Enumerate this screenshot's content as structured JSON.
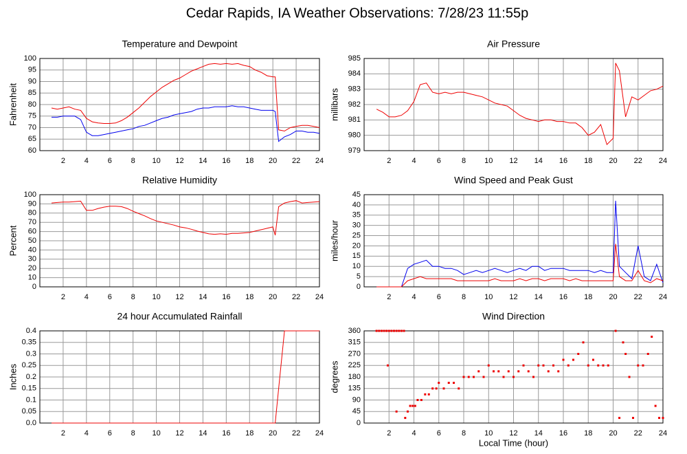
{
  "title": "Cedar Rapids, IA Weather Observations: 7/28/23 11:55p",
  "chart_data": [
    {
      "type": "line",
      "title": "Temperature and Dewpoint",
      "ylabel": "Fahrenheit",
      "x": [
        1,
        1.5,
        2,
        2.5,
        3,
        3.5,
        4,
        4.5,
        5,
        5.5,
        6,
        6.5,
        7,
        7.5,
        8,
        8.5,
        9,
        9.5,
        10,
        10.5,
        11,
        11.5,
        12,
        12.5,
        13,
        13.5,
        14,
        14.5,
        15,
        15.5,
        16,
        16.5,
        17,
        17.5,
        18,
        18.5,
        19,
        19.5,
        20,
        20.2,
        20.5,
        21,
        21.5,
        22,
        22.5,
        23,
        23.5,
        24
      ],
      "series": [
        {
          "color": "#ee0000",
          "values": [
            78.5,
            78,
            78.5,
            79,
            78,
            77.5,
            74,
            72.5,
            72,
            71.8,
            71.8,
            72,
            73,
            74.5,
            76.5,
            78.5,
            81,
            83.5,
            85.5,
            87.5,
            89,
            90.5,
            91.5,
            93,
            94.5,
            95.5,
            96.5,
            97.5,
            97.8,
            97.5,
            97.8,
            97.5,
            97.8,
            97,
            96.5,
            95,
            94,
            92.5,
            92,
            92,
            69,
            68.5,
            70,
            70.5,
            71,
            71,
            70.5,
            70
          ]
        },
        {
          "color": "#0000ee",
          "values": [
            74.5,
            74.5,
            75,
            75,
            75,
            73.5,
            68,
            66.5,
            66.5,
            67,
            67.5,
            68,
            68.5,
            69,
            69.5,
            70.5,
            71,
            72,
            73,
            74,
            74.5,
            75.5,
            76,
            76.5,
            77,
            78,
            78.5,
            78.5,
            79,
            79,
            79,
            79.5,
            79,
            79,
            78.5,
            78,
            77.5,
            77.5,
            77.5,
            77,
            64,
            66,
            67,
            68.5,
            68.5,
            68,
            68,
            67.5
          ]
        }
      ],
      "xlim": [
        0,
        24
      ],
      "xticks": [
        2,
        4,
        6,
        8,
        10,
        12,
        14,
        16,
        18,
        20,
        22,
        24
      ],
      "ylim": [
        60,
        100
      ],
      "yticks": [
        60,
        65,
        70,
        75,
        80,
        85,
        90,
        95,
        100
      ],
      "grid": true
    },
    {
      "type": "line",
      "title": "Air Pressure",
      "ylabel": "millibars",
      "x": [
        1,
        1.5,
        2,
        2.5,
        3,
        3.5,
        4,
        4.5,
        5,
        5.5,
        6,
        6.5,
        7,
        7.5,
        8,
        8.5,
        9,
        9.5,
        10,
        10.5,
        11,
        11.5,
        12,
        12.5,
        13,
        13.5,
        14,
        14.5,
        15,
        15.5,
        16,
        16.5,
        17,
        17.5,
        18,
        18.5,
        19,
        19.5,
        20,
        20.2,
        20.5,
        21,
        21.5,
        22,
        22.5,
        23,
        23.5,
        24
      ],
      "series": [
        {
          "color": "#ee0000",
          "values": [
            981.7,
            981.5,
            981.2,
            981.2,
            981.3,
            981.6,
            982.2,
            983.3,
            983.4,
            982.8,
            982.7,
            982.8,
            982.7,
            982.8,
            982.8,
            982.7,
            982.6,
            982.5,
            982.3,
            982.1,
            982.0,
            981.9,
            981.6,
            981.3,
            981.1,
            981.0,
            980.9,
            981.0,
            981.0,
            980.9,
            980.9,
            980.8,
            980.8,
            980.5,
            980.0,
            980.2,
            980.7,
            979.4,
            979.8,
            984.7,
            984.2,
            981.2,
            982.5,
            982.3,
            982.6,
            982.9,
            983.0,
            983.2
          ]
        }
      ],
      "xlim": [
        0,
        24
      ],
      "xticks": [
        2,
        4,
        6,
        8,
        10,
        12,
        14,
        16,
        18,
        20,
        22,
        24
      ],
      "ylim": [
        979,
        985
      ],
      "yticks": [
        979,
        980,
        981,
        982,
        983,
        984,
        985
      ],
      "grid": true
    },
    {
      "type": "line",
      "title": "Relative Humidity",
      "ylabel": "Percent",
      "x": [
        1,
        1.5,
        2,
        2.5,
        3,
        3.5,
        4,
        4.5,
        5,
        5.5,
        6,
        6.5,
        7,
        7.5,
        8,
        8.5,
        9,
        9.5,
        10,
        10.5,
        11,
        11.5,
        12,
        12.5,
        13,
        13.5,
        14,
        14.5,
        15,
        15.5,
        16,
        16.5,
        17,
        17.5,
        18,
        18.5,
        19,
        19.5,
        20,
        20.2,
        20.5,
        21,
        21.5,
        22,
        22.5,
        23,
        23.5,
        24
      ],
      "series": [
        {
          "color": "#ee0000",
          "values": [
            91,
            91.5,
            92,
            92,
            92.5,
            93,
            83,
            83,
            85,
            86.5,
            87.5,
            87.5,
            87,
            85,
            82,
            79.5,
            77,
            74,
            71.5,
            70,
            68.5,
            67,
            65,
            64,
            62.5,
            60.5,
            59,
            57.5,
            57,
            57.5,
            57,
            58,
            58,
            58.5,
            59,
            60.5,
            62,
            63.5,
            65,
            56,
            87,
            91,
            92.5,
            93.5,
            91,
            91.5,
            92,
            92.5
          ]
        }
      ],
      "xlim": [
        0,
        24
      ],
      "xticks": [
        2,
        4,
        6,
        8,
        10,
        12,
        14,
        16,
        18,
        20,
        22,
        24
      ],
      "ylim": [
        0,
        100
      ],
      "yticks": [
        0,
        10,
        20,
        30,
        40,
        50,
        60,
        70,
        80,
        90,
        100
      ],
      "grid": true
    },
    {
      "type": "line",
      "title": "Wind Speed and Peak Gust",
      "ylabel": "miles/hour",
      "x": [
        1,
        1.5,
        2,
        2.5,
        3,
        3.5,
        4,
        4.5,
        5,
        5.5,
        6,
        6.5,
        7,
        7.5,
        8,
        8.5,
        9,
        9.5,
        10,
        10.5,
        11,
        11.5,
        12,
        12.5,
        13,
        13.5,
        14,
        14.5,
        15,
        15.5,
        16,
        16.5,
        17,
        17.5,
        18,
        18.5,
        19,
        19.5,
        20,
        20.2,
        20.5,
        21,
        21.5,
        22,
        22.5,
        23,
        23.5,
        24
      ],
      "series": [
        {
          "color": "#0000ee",
          "values": [
            0,
            0,
            0,
            0,
            0,
            9,
            11,
            12,
            13,
            10,
            10,
            9,
            9,
            8,
            6,
            7,
            8,
            7,
            8,
            9,
            8,
            7,
            8,
            9,
            8,
            10,
            10,
            8,
            9,
            9,
            9,
            8,
            8,
            8,
            8,
            7,
            8,
            7,
            7,
            42,
            10,
            7,
            4,
            20,
            5,
            3,
            11,
            2
          ]
        },
        {
          "color": "#ee0000",
          "values": [
            0,
            0,
            0,
            0,
            0,
            3,
            4,
            5,
            4,
            4,
            4,
            4,
            4,
            3,
            3,
            3,
            3,
            3,
            3,
            4,
            3,
            3,
            3,
            4,
            3,
            4,
            4,
            3,
            4,
            4,
            4,
            3,
            4,
            3,
            3,
            3,
            3,
            3,
            3,
            21,
            5,
            3,
            3,
            8,
            3,
            2,
            4,
            3
          ]
        }
      ],
      "xlim": [
        0,
        24
      ],
      "xticks": [
        2,
        4,
        6,
        8,
        10,
        12,
        14,
        16,
        18,
        20,
        22,
        24
      ],
      "ylim": [
        0,
        45
      ],
      "yticks": [
        0,
        5,
        10,
        15,
        20,
        25,
        30,
        35,
        40,
        45
      ],
      "grid": true
    },
    {
      "type": "line",
      "title": "24 hour Accumulated Rainfall",
      "ylabel": "Inches",
      "x": [
        1,
        1.5,
        2,
        2.5,
        3,
        3.5,
        4,
        4.5,
        5,
        5.5,
        6,
        6.5,
        7,
        7.5,
        8,
        8.5,
        9,
        9.5,
        10,
        10.5,
        11,
        11.5,
        12,
        12.5,
        13,
        13.5,
        14,
        14.5,
        15,
        15.5,
        16,
        16.5,
        17,
        17.5,
        18,
        18.5,
        19,
        19.5,
        20,
        20.2,
        20.5,
        21,
        21.5,
        22,
        22.5,
        23,
        23.5,
        24
      ],
      "series": [
        {
          "color": "#ee0000",
          "values": [
            0,
            0,
            0,
            0,
            0,
            0,
            0,
            0,
            0,
            0,
            0,
            0,
            0,
            0,
            0,
            0,
            0,
            0,
            0,
            0,
            0,
            0,
            0,
            0,
            0,
            0,
            0,
            0,
            0,
            0,
            0,
            0,
            0,
            0,
            0,
            0,
            0,
            0,
            0,
            0,
            0.15,
            0.4,
            0.4,
            0.4,
            0.4,
            0.4,
            0.4,
            0.4
          ]
        }
      ],
      "xlim": [
        0,
        24
      ],
      "xticks": [
        2,
        4,
        6,
        8,
        10,
        12,
        14,
        16,
        18,
        20,
        22,
        24
      ],
      "ylim": [
        0,
        0.4
      ],
      "yticks": [
        {
          "value": 0,
          "label": "0.0"
        },
        0.05,
        0.1,
        0.15,
        0.2,
        0.25,
        0.3,
        0.35,
        0.4
      ],
      "grid": true
    },
    {
      "type": "scatter",
      "title": "Wind Direction",
      "ylabel": "degrees",
      "xlabel": "Local Time (hour)",
      "x": [
        1.0,
        1.2,
        1.4,
        1.6,
        1.8,
        2.0,
        2.2,
        2.4,
        2.6,
        2.8,
        3.0,
        3.2,
        1.9,
        2.6,
        3.3,
        3.5,
        3.7,
        3.9,
        4.1,
        4.3,
        4.6,
        4.9,
        5.2,
        5.5,
        5.8,
        6.0,
        6.4,
        6.8,
        7.2,
        7.6,
        8.0,
        8.4,
        8.8,
        9.2,
        9.6,
        10.0,
        10.4,
        10.8,
        11.2,
        11.6,
        12.0,
        12.4,
        12.8,
        13.2,
        13.6,
        14.0,
        14.4,
        14.8,
        15.2,
        15.6,
        16.0,
        16.4,
        16.8,
        17.2,
        17.6,
        18.0,
        18.4,
        18.8,
        19.2,
        19.6,
        20.2,
        20.5,
        20.8,
        21.0,
        21.3,
        21.6,
        22.0,
        22.4,
        22.8,
        23.1,
        23.4,
        23.7,
        24.0
      ],
      "series": [
        {
          "color": "#ee0000",
          "values": [
            360,
            360,
            360,
            360,
            360,
            360,
            360,
            360,
            360,
            360,
            360,
            360,
            225,
            45,
            20,
            45,
            67,
            67,
            67,
            90,
            90,
            112,
            112,
            135,
            135,
            157,
            135,
            157,
            157,
            135,
            180,
            180,
            180,
            202,
            180,
            225,
            202,
            202,
            180,
            202,
            180,
            202,
            225,
            202,
            180,
            225,
            225,
            202,
            225,
            202,
            247,
            225,
            247,
            270,
            315,
            225,
            247,
            225,
            225,
            225,
            360,
            20,
            315,
            270,
            180,
            20,
            225,
            225,
            270,
            337,
            67,
            20,
            20
          ]
        }
      ],
      "xlim": [
        0,
        24
      ],
      "xticks": [
        2,
        4,
        6,
        8,
        10,
        12,
        14,
        16,
        18,
        20,
        22,
        24
      ],
      "ylim": [
        0,
        360
      ],
      "yticks": [
        0,
        45,
        90,
        135,
        180,
        225,
        270,
        315,
        360
      ],
      "grid": true
    }
  ]
}
